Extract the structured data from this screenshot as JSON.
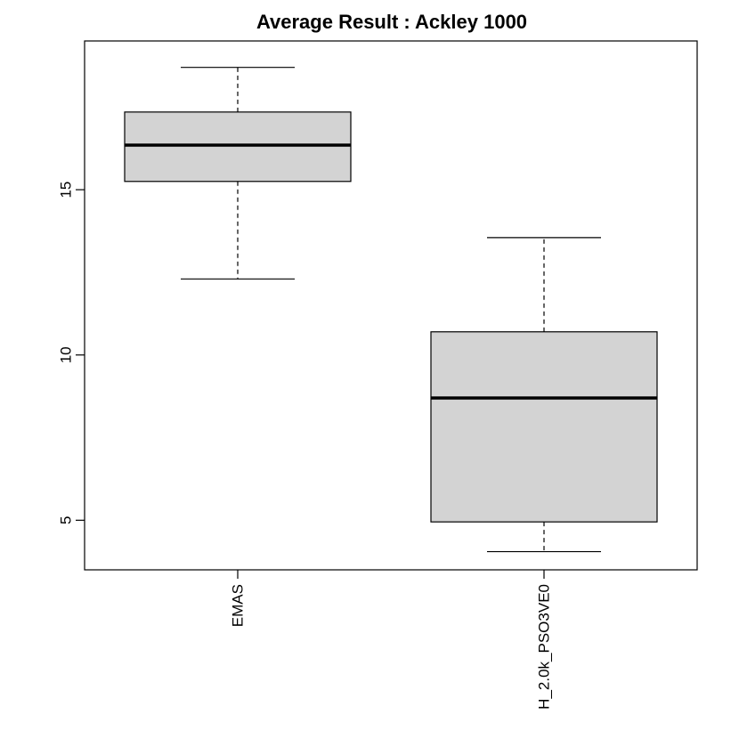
{
  "chart_data": {
    "type": "boxplot",
    "title": "Average Result : Ackley 1000",
    "xlabel": "",
    "ylabel": "",
    "categories": [
      "EMAS",
      "H_2.0k_PSO3VE0"
    ],
    "series": [
      {
        "category": "EMAS",
        "min": 12.3,
        "q1": 15.25,
        "median": 16.35,
        "q3": 17.35,
        "max": 18.7
      },
      {
        "category": "H_2.0k_PSO3VE0",
        "min": 4.05,
        "q1": 4.95,
        "median": 8.7,
        "q3": 10.7,
        "max": 13.55
      }
    ],
    "yticks": [
      5,
      10,
      15
    ],
    "ylim": [
      3.5,
      19.5
    ],
    "box_fill": "#d3d3d3",
    "grid": false
  }
}
